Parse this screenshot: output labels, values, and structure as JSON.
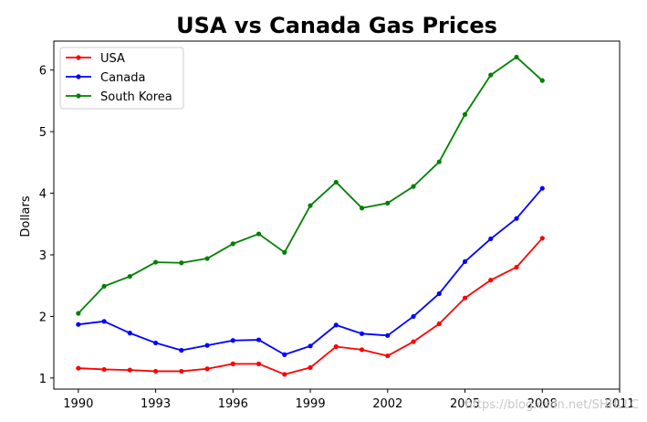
{
  "chart_data": {
    "type": "line",
    "title": "USA vs Canada Gas Prices",
    "xlabel": "",
    "ylabel": "Dollars",
    "xlim": [
      1989.05,
      2011
    ],
    "ylim": [
      0.82,
      6.47
    ],
    "x_ticks": [
      1990,
      1993,
      1996,
      1999,
      2002,
      2005,
      2008,
      2011
    ],
    "x_tick_labels": [
      "1990",
      "1993",
      "1996",
      "1999",
      "2002",
      "2005",
      "2008",
      "2011"
    ],
    "y_ticks": [
      1,
      2,
      3,
      4,
      5,
      6
    ],
    "y_tick_labels": [
      "1",
      "2",
      "3",
      "4",
      "5",
      "6"
    ],
    "grid": false,
    "legend_position": "top-left",
    "x": [
      1990,
      1991,
      1992,
      1993,
      1994,
      1995,
      1996,
      1997,
      1998,
      1999,
      2000,
      2001,
      2002,
      2003,
      2004,
      2005,
      2006,
      2007,
      2008
    ],
    "series": [
      {
        "name": "USA",
        "color": "#ff0000",
        "marker": "dot",
        "values": [
          1.16,
          1.14,
          1.13,
          1.11,
          1.11,
          1.15,
          1.23,
          1.23,
          1.06,
          1.17,
          1.51,
          1.46,
          1.36,
          1.59,
          1.88,
          2.3,
          2.59,
          2.8,
          3.27
        ]
      },
      {
        "name": "Canada",
        "color": "#0000ff",
        "marker": "dot",
        "values": [
          1.87,
          1.92,
          1.73,
          1.57,
          1.45,
          1.53,
          1.61,
          1.62,
          1.38,
          1.52,
          1.86,
          1.72,
          1.69,
          2.0,
          2.37,
          2.89,
          3.26,
          3.59,
          4.08
        ]
      },
      {
        "name": "South Korea",
        "color": "#008000",
        "marker": "dot",
        "values": [
          2.05,
          2.49,
          2.65,
          2.88,
          2.87,
          2.94,
          3.18,
          3.34,
          3.04,
          3.8,
          4.18,
          3.76,
          3.84,
          4.11,
          4.51,
          5.28,
          5.92,
          6.21,
          5.83
        ]
      }
    ]
  },
  "watermark": "https://blog.csdn.net/SHHLLC"
}
